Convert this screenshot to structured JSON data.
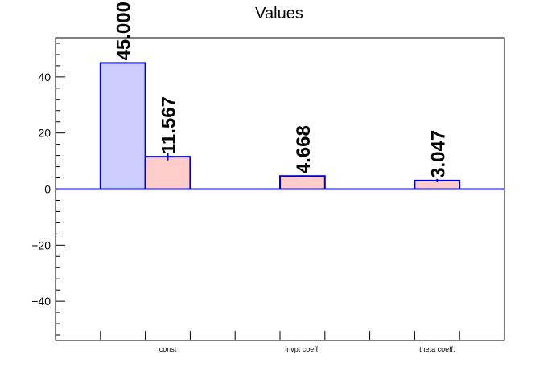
{
  "chart_data": {
    "type": "bar",
    "title": "Values",
    "xlabel": "",
    "ylabel": "",
    "ylim": [
      -54,
      54
    ],
    "yticks": [
      -40,
      -20,
      0,
      20,
      40
    ],
    "categories": [
      "const",
      "invpt coeff.",
      "theta coeff."
    ],
    "series": [
      {
        "color": "#ccccff",
        "values": [
          45.0,
          null,
          null
        ],
        "value_labels": [
          "45.000",
          "",
          ""
        ]
      },
      {
        "color": "#ffcccc",
        "values": [
          11.567,
          4.668,
          3.047
        ],
        "errors": [
          1.3,
          0.3,
          0.6
        ],
        "value_labels": [
          "11.567",
          "4.668",
          "3.047"
        ]
      }
    ],
    "bar_edge_color": "#0000cc",
    "grid": false,
    "legend": "none"
  }
}
